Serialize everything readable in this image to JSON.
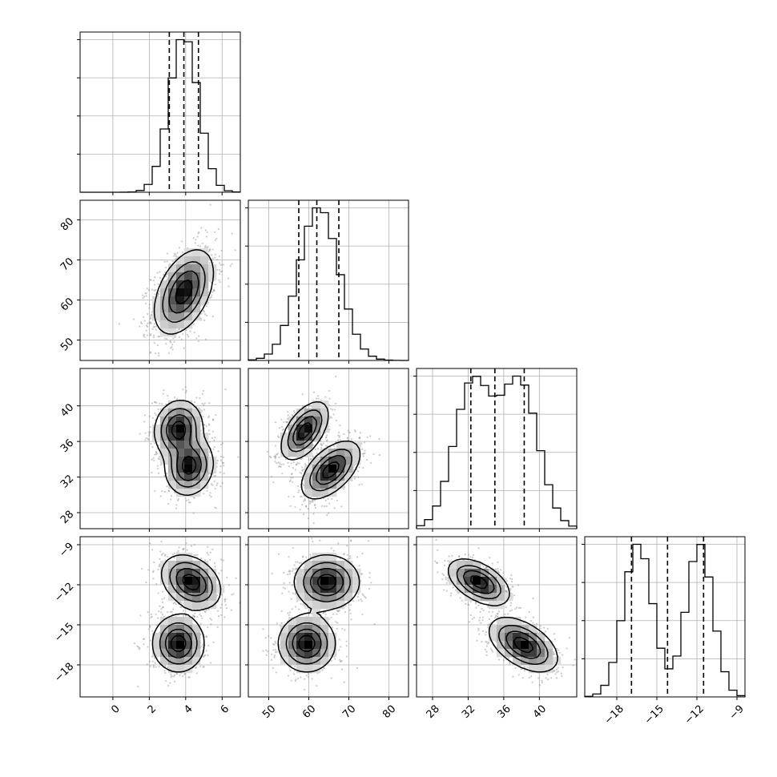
{
  "chart_data": {
    "type": "corner",
    "grid": true,
    "parameters": [
      {
        "range": [
          -1.8,
          7.0
        ],
        "ticks": [
          0,
          2,
          4,
          6
        ],
        "tick_labels": [
          "0",
          "2",
          "4",
          "6"
        ],
        "quantiles": [
          3.1,
          3.9,
          4.7
        ],
        "mean": 3.9,
        "sd": 0.8
      },
      {
        "range": [
          44.9,
          84.9
        ],
        "ticks": [
          50,
          60,
          70,
          80
        ],
        "tick_labels": [
          "50",
          "60",
          "70",
          "80"
        ],
        "quantiles": [
          57.5,
          62.0,
          67.5
        ],
        "mean": 62.5,
        "sd": 5.0
      },
      {
        "range": [
          26.2,
          44.2
        ],
        "ticks": [
          28,
          32,
          36,
          40
        ],
        "tick_labels": [
          "28",
          "32",
          "36",
          "40"
        ],
        "quantiles": [
          32.3,
          35.0,
          38.3
        ],
        "modes": [
          {
            "mean": 32.5,
            "sd": 2.1
          },
          {
            "mean": 37.8,
            "sd": 2.1
          }
        ]
      },
      {
        "range": [
          -20.4,
          -8.4
        ],
        "ticks": [
          -18,
          -15,
          -12,
          -9
        ],
        "tick_labels": [
          "−18",
          "−15",
          "−12",
          "−9"
        ],
        "quantiles": [
          -16.9,
          -14.2,
          -11.5
        ],
        "modes": [
          {
            "mean": -16.4,
            "sd": 1.1
          },
          {
            "mean": -11.8,
            "sd": 1.0
          }
        ]
      }
    ],
    "pair_clusters": {
      "1-0": [
        {
          "mx": 3.9,
          "my": 62.0,
          "sx": 0.8,
          "sy": 5.2,
          "rho": 0.45,
          "w": 1
        }
      ],
      "2-0": [
        {
          "mx": 3.6,
          "my": 37.4,
          "sx": 0.65,
          "sy": 1.6,
          "rho": 0.1,
          "w": 0.5
        },
        {
          "mx": 4.2,
          "my": 33.2,
          "sx": 0.65,
          "sy": 1.6,
          "rho": 0.1,
          "w": 0.5
        }
      ],
      "2-1": [
        {
          "mx": 59.0,
          "my": 37.2,
          "sx": 2.9,
          "sy": 1.6,
          "rho": 0.55,
          "w": 0.5
        },
        {
          "mx": 65.5,
          "my": 32.8,
          "sx": 3.6,
          "sy": 1.6,
          "rho": 0.55,
          "w": 0.5
        }
      ],
      "3-0": [
        {
          "mx": 4.3,
          "my": -11.8,
          "sx": 0.8,
          "sy": 1.0,
          "rho": -0.3,
          "w": 0.5
        },
        {
          "mx": 3.6,
          "my": -16.4,
          "sx": 0.7,
          "sy": 1.05,
          "rho": 0.0,
          "w": 0.5
        }
      ],
      "3-1": [
        {
          "mx": 64.5,
          "my": -11.8,
          "sx": 4.0,
          "sy": 1.0,
          "rho": 0.0,
          "w": 0.5
        },
        {
          "mx": 59.5,
          "my": -16.4,
          "sx": 3.5,
          "sy": 1.05,
          "rho": 0.0,
          "w": 0.5
        }
      ],
      "3-2": [
        {
          "mx": 33.2,
          "my": -11.8,
          "sx": 1.7,
          "sy": 0.85,
          "rho": -0.5,
          "w": 0.5
        },
        {
          "mx": 38.2,
          "my": -16.5,
          "sx": 1.9,
          "sy": 1.0,
          "rho": -0.5,
          "w": 0.5
        }
      ]
    }
  }
}
